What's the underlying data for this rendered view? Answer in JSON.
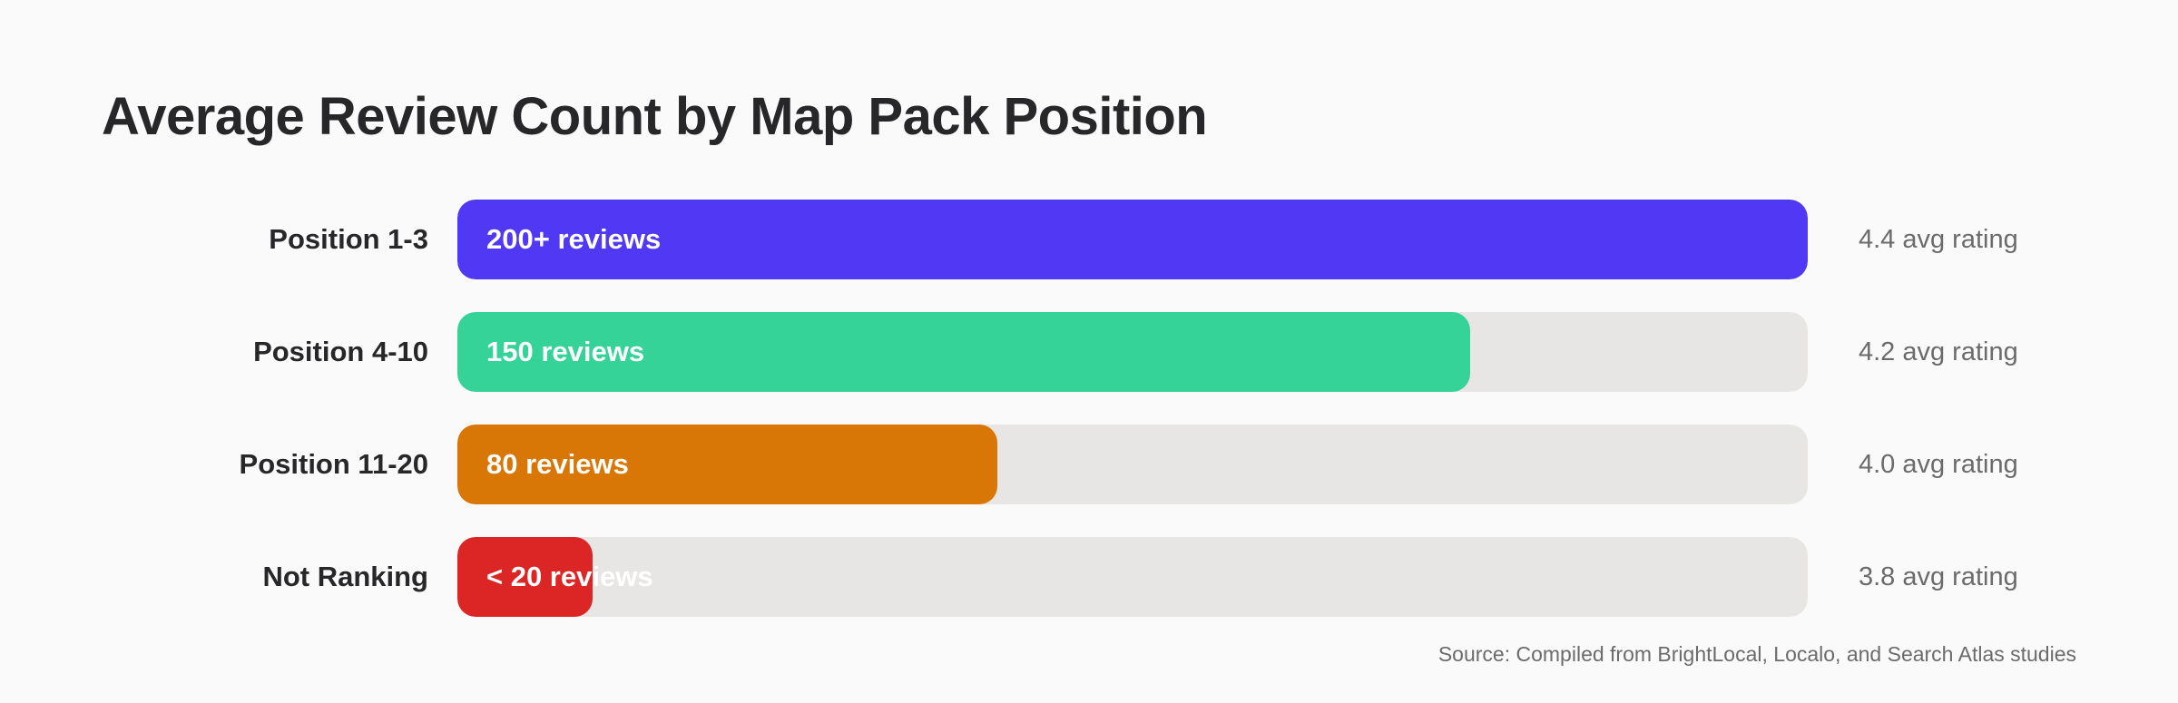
{
  "chart_data": {
    "type": "bar",
    "orientation": "horizontal",
    "title": "Average Review Count by Map Pack Position",
    "categories": [
      "Position 1-3",
      "Position 4-10",
      "Position 11-20",
      "Not Ranking"
    ],
    "values": [
      200,
      150,
      80,
      20
    ],
    "bar_labels": [
      "200+ reviews",
      "150 reviews",
      "80 reviews",
      "< 20 reviews"
    ],
    "ratings": [
      "4.4 avg rating",
      "4.2 avg rating",
      "4.0 avg rating",
      "3.8 avg rating"
    ],
    "xlim": [
      0,
      200
    ],
    "colors": [
      "#5038f5",
      "#36d399",
      "#d97706",
      "#dc2626"
    ],
    "track_color": "#e7e6e4",
    "grid": false,
    "source": "Source: Compiled from BrightLocal, Localo, and Search Atlas studies"
  }
}
